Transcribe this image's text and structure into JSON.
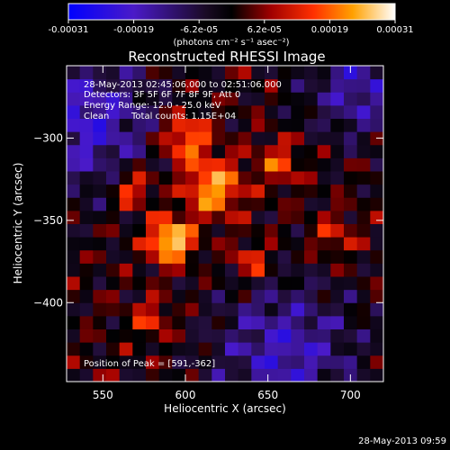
{
  "chart_data": {
    "type": "heatmap",
    "title": "Reconstructed RHESSI Image",
    "xlabel": "Heliocentric X (arcsec)",
    "ylabel": "Heliocentric Y (arcsec)",
    "xlim": [
      528,
      720
    ],
    "ylim": [
      -448,
      -256
    ],
    "x_ticks": [
      550,
      600,
      650,
      700
    ],
    "y_ticks": [
      -300,
      -350,
      -400
    ],
    "x_tick_labels": [
      "550",
      "600",
      "650",
      "700"
    ],
    "y_tick_labels": [
      "−300",
      "−350",
      "−400"
    ],
    "colorbar": {
      "range": [
        -0.00031,
        0.00031
      ],
      "tick_labels": [
        "-0.00031",
        "-0.00019",
        "-6.2e-05",
        "6.2e-05",
        "0.00019",
        "0.00031"
      ],
      "unit_label": "(photons cm⁻² s⁻¹ asec⁻²)",
      "colormap": "blue-purple-black-red-orange-yellow-white"
    },
    "annotations": {
      "time": "28-May-2013 02:45:06.000 to 02:51:06.000",
      "detectors": "Detectors: 3F 5F 6F 7F 8F 9F, Att 0",
      "energy": "Energy Range: 12.0 - 25.0 keV",
      "clean": "Clean",
      "counts": "Total counts: 1.15E+04",
      "peak": "Position of Peak = [591,-362]"
    },
    "peak": [
      591,
      -362
    ],
    "sources": [
      {
        "x": 591,
        "y": -362,
        "sigma": 9,
        "amp": 1.0
      },
      {
        "x": 617,
        "y": -330,
        "sigma": 12,
        "amp": 0.75
      },
      {
        "x": 600,
        "y": -300,
        "sigma": 10,
        "amp": 0.65
      },
      {
        "x": 568,
        "y": -330,
        "sigma": 8,
        "amp": 0.55
      },
      {
        "x": 657,
        "y": -315,
        "sigma": 9,
        "amp": 0.45
      },
      {
        "x": 640,
        "y": -375,
        "sigma": 8,
        "amp": 0.45
      },
      {
        "x": 580,
        "y": -410,
        "sigma": 8,
        "amp": 0.4
      },
      {
        "x": 690,
        "y": -360,
        "sigma": 9,
        "amp": 0.35
      }
    ]
  },
  "footer": {
    "timestamp": "28-May-2013 09:59"
  },
  "colors": {
    "background": "#000000",
    "text": "#ffffff"
  }
}
